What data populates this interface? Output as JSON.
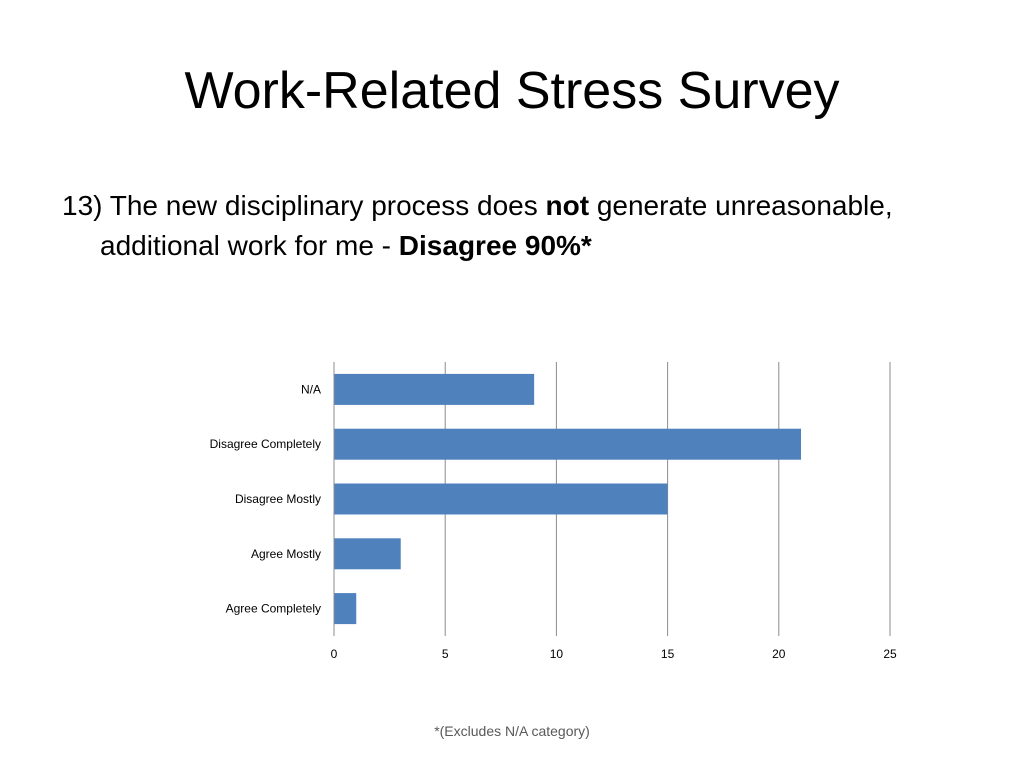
{
  "slide": {
    "title": "Work-Related Stress Survey",
    "question": {
      "part1": "13) The new disciplinary process does ",
      "emph1": "not",
      "part2": " generate unreasonable, additional work for me - ",
      "emph2": "Disagree 90%*"
    },
    "footnote": "*(Excludes N/A category)"
  },
  "chart_data": {
    "type": "bar",
    "orientation": "horizontal",
    "categories": [
      "N/A",
      "Disagree Completely",
      "Disagree Mostly",
      "Agree Mostly",
      "Agree Completely"
    ],
    "values": [
      9,
      21,
      15,
      3,
      1
    ],
    "xlim": [
      0,
      25
    ],
    "xticks": [
      0,
      5,
      10,
      15,
      20,
      25
    ],
    "grid": true,
    "legend": "none",
    "bar_color": "#4F81BD",
    "grid_color": "#8C8C8C"
  }
}
